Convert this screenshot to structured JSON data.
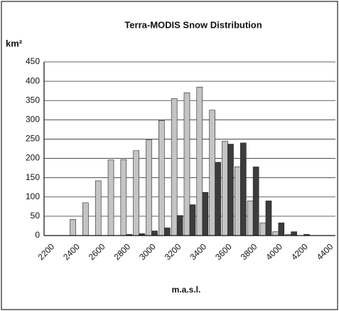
{
  "chart_data": {
    "type": "bar",
    "title": "Terra-MODIS Snow Distribution",
    "y_label": "km²",
    "x_label": "m.a.s.l.",
    "categories": [
      "2200",
      null,
      "2400",
      null,
      "2600",
      null,
      "2800",
      null,
      "3000",
      null,
      "3200",
      null,
      "3400",
      null,
      "3600",
      null,
      "3800",
      null,
      "4000",
      null,
      "4200",
      null,
      "4400"
    ],
    "series": [
      {
        "color": "#c4c4c4",
        "values": [
          0,
          0,
          42,
          85,
          142,
          196,
          197,
          220,
          248,
          298,
          355,
          370,
          385,
          325,
          245,
          178,
          90,
          33,
          10,
          3,
          0,
          0,
          0
        ]
      },
      {
        "color": "#3c3c3c",
        "values": [
          0,
          0,
          0,
          0,
          0,
          0,
          3,
          5,
          12,
          20,
          52,
          80,
          112,
          190,
          237,
          240,
          178,
          90,
          33,
          10,
          3,
          0,
          0
        ]
      }
    ],
    "ylim": [
      0,
      450
    ],
    "yticks": [
      0,
      50,
      100,
      150,
      200,
      250,
      300,
      350,
      400,
      450
    ],
    "grid": true
  }
}
